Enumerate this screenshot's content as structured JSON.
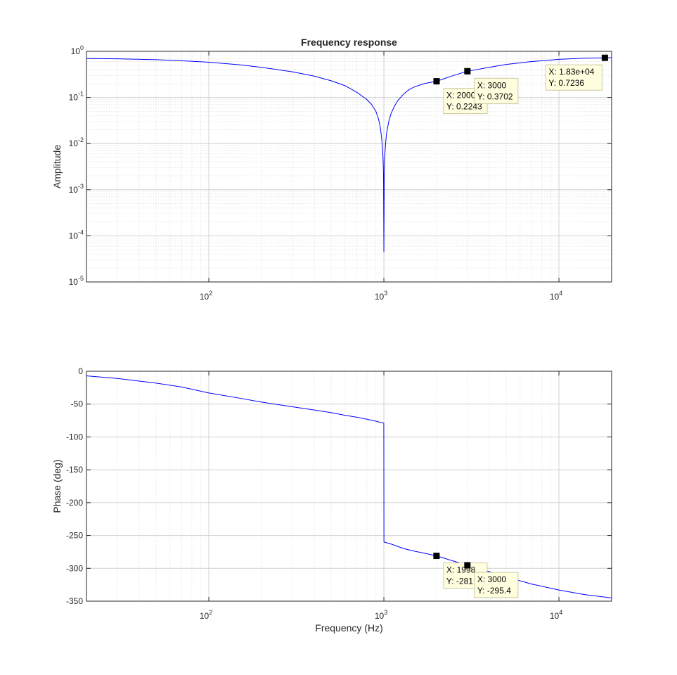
{
  "window": {
    "title": ""
  },
  "chart_data": [
    {
      "id": "amplitude",
      "type": "line",
      "title": "Frequency response",
      "xlabel": "",
      "ylabel": "Amplitude",
      "xscale": "log",
      "yscale": "log",
      "xlim": [
        20,
        20000
      ],
      "ylim": [
        1e-05,
        1
      ],
      "grid": true,
      "minor_grid": true,
      "x_ticks": [
        {
          "value": 100,
          "base": "10",
          "exp": "2"
        },
        {
          "value": 1000,
          "base": "10",
          "exp": "3"
        },
        {
          "value": 10000,
          "base": "10",
          "exp": "4"
        }
      ],
      "y_ticks": [
        {
          "value": 1,
          "base": "10",
          "exp": "0"
        },
        {
          "value": 0.1,
          "base": "10",
          "exp": "-1"
        },
        {
          "value": 0.01,
          "base": "10",
          "exp": "-2"
        },
        {
          "value": 0.001,
          "base": "10",
          "exp": "-3"
        },
        {
          "value": 0.0001,
          "base": "10",
          "exp": "-4"
        },
        {
          "value": 1e-05,
          "base": "10",
          "exp": "-5"
        }
      ],
      "series": [
        {
          "color": "#0000ff",
          "x": [
            20,
            30,
            50,
            80,
            100,
            150,
            200,
            300,
            400,
            500,
            600,
            700,
            800,
            850,
            900,
            930,
            950,
            965,
            975,
            985,
            990,
            995,
            1000,
            1005,
            1010,
            1015,
            1025,
            1035,
            1050,
            1070,
            1100,
            1150,
            1200,
            1300,
            1400,
            1500,
            1700,
            2000,
            2500,
            3000,
            4000,
            5000,
            7000,
            10000,
            14000,
            18300,
            20000
          ],
          "y": [
            0.7,
            0.69,
            0.66,
            0.61,
            0.58,
            0.51,
            0.45,
            0.36,
            0.29,
            0.23,
            0.18,
            0.13,
            0.09,
            0.071,
            0.05,
            0.035,
            0.025,
            0.016,
            0.011,
            0.0065,
            0.0042,
            0.0022,
            4.47e-05,
            0.0022,
            0.0042,
            0.0065,
            0.011,
            0.016,
            0.022,
            0.032,
            0.045,
            0.065,
            0.085,
            0.12,
            0.15,
            0.17,
            0.2,
            0.2243,
            0.3,
            0.3702,
            0.45,
            0.52,
            0.6,
            0.67,
            0.71,
            0.7236,
            0.73
          ]
        }
      ],
      "datatips": [
        {
          "x": 2000,
          "y": 0.2243,
          "x_text": "X: 2000",
          "y_text": "Y: 0.2243"
        },
        {
          "x": 3000,
          "y": 0.3702,
          "x_text": "X: 3000",
          "y_text": "Y: 0.3702"
        },
        {
          "x": 18300,
          "y": 0.7236,
          "x_text": "X: 1.83e+04",
          "y_text": "Y: 0.7236"
        }
      ]
    },
    {
      "id": "phase",
      "type": "line",
      "title": "",
      "xlabel": "Frequency (Hz)",
      "ylabel": "Phase (deg)",
      "xscale": "log",
      "yscale": "linear",
      "xlim": [
        20,
        20000
      ],
      "ylim": [
        -350,
        0
      ],
      "grid": true,
      "minor_grid": true,
      "x_ticks": [
        {
          "value": 100,
          "base": "10",
          "exp": "2"
        },
        {
          "value": 1000,
          "base": "10",
          "exp": "3"
        },
        {
          "value": 10000,
          "base": "10",
          "exp": "4"
        }
      ],
      "y_ticks": [
        {
          "value": 0,
          "label": "0"
        },
        {
          "value": -50,
          "label": "-50"
        },
        {
          "value": -100,
          "label": "-100"
        },
        {
          "value": -150,
          "label": "-150"
        },
        {
          "value": -200,
          "label": "-200"
        },
        {
          "value": -250,
          "label": "-250"
        },
        {
          "value": -300,
          "label": "-300"
        },
        {
          "value": -350,
          "label": "-350"
        }
      ],
      "series": [
        {
          "color": "#0000ff",
          "x": [
            20,
            30,
            50,
            70,
            100,
            150,
            200,
            300,
            400,
            500,
            600,
            700,
            800,
            900,
            999,
            1001,
            1100,
            1300,
            1500,
            1700,
            1998,
            2500,
            3000,
            4000,
            5000,
            7000,
            10000,
            14000,
            20000
          ],
          "y": [
            -7,
            -11,
            -18,
            -24,
            -33,
            -41,
            -47,
            -54,
            -59,
            -63,
            -67,
            -70,
            -73,
            -76,
            -79,
            -260,
            -263,
            -270,
            -274,
            -277,
            -281,
            -289,
            -295.4,
            -305,
            -313,
            -324,
            -333,
            -340,
            -345
          ]
        }
      ],
      "datatips": [
        {
          "x": 1998,
          "y": -281,
          "x_text": "X: 1998",
          "y_text": "Y: -281"
        },
        {
          "x": 3000,
          "y": -295.4,
          "x_text": "X: 3000",
          "y_text": "Y: -295.4"
        }
      ]
    }
  ]
}
